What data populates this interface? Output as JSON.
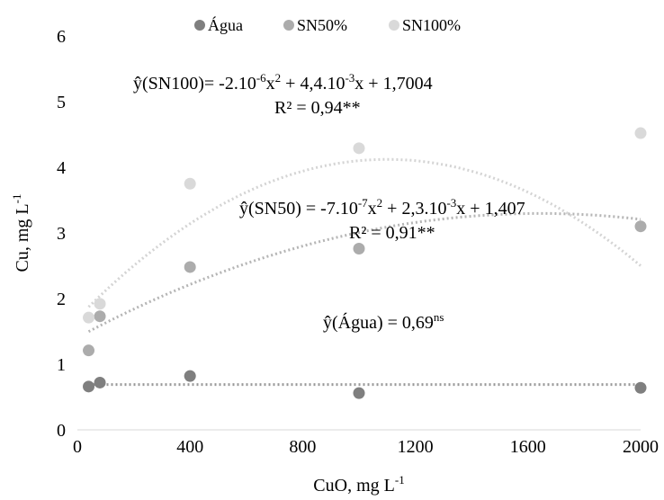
{
  "chart_data": {
    "type": "scatter",
    "title": "",
    "xlabel": "CuO, mg L",
    "xlabel_sup": "-1",
    "ylabel": "Cu, mg L",
    "ylabel_sup": "-1",
    "xlim": [
      0,
      2000
    ],
    "ylim": [
      0,
      6
    ],
    "xticks": [
      0,
      400,
      800,
      1200,
      1600,
      2000
    ],
    "yticks": [
      0,
      1,
      2,
      3,
      4,
      5,
      6
    ],
    "grid": false,
    "legend_position": "top",
    "series": [
      {
        "name": "Água",
        "color": "#7f7f7f",
        "x": [
          40,
          80,
          400,
          1000,
          2000
        ],
        "y": [
          0.66,
          0.72,
          0.82,
          0.56,
          0.64
        ],
        "trend": {
          "kind": "constant",
          "coef": [
            0.69
          ]
        }
      },
      {
        "name": "SN50%",
        "color": "#acacac",
        "x": [
          40,
          80,
          400,
          1000,
          2000
        ],
        "y": [
          1.21,
          1.73,
          2.48,
          2.76,
          3.1
        ],
        "trend": {
          "kind": "quadratic",
          "coef": [
            -7e-07,
            0.0023,
            1.407
          ]
        }
      },
      {
        "name": "SN100%",
        "color": "#d9d9d9",
        "x": [
          40,
          80,
          400,
          1000,
          2000
        ],
        "y": [
          1.71,
          1.92,
          3.75,
          4.29,
          4.52
        ],
        "trend": {
          "kind": "quadratic",
          "coef": [
            -2e-06,
            0.0044,
            1.7004
          ]
        }
      }
    ],
    "annotations": {
      "sn100": {
        "p1": "ŷ(SN100)= -2.10",
        "s1": "-6",
        "p2": "x",
        "s2": "2",
        "p3": " + 4,4.10",
        "s3": "-3",
        "p4": "x + 1,7004",
        "r2": "R² = 0,94**"
      },
      "sn50": {
        "p1": "ŷ(SN50) = -7.10",
        "s1": "-7",
        "p2": "x",
        "s2": "2",
        "p3": " + 2,3.10",
        "s3": "-3",
        "p4": "x + 1,407",
        "r2": "R² = 0,91**"
      },
      "agua": {
        "p1": "ŷ(Água) = 0,69",
        "s1": "ns"
      }
    }
  }
}
